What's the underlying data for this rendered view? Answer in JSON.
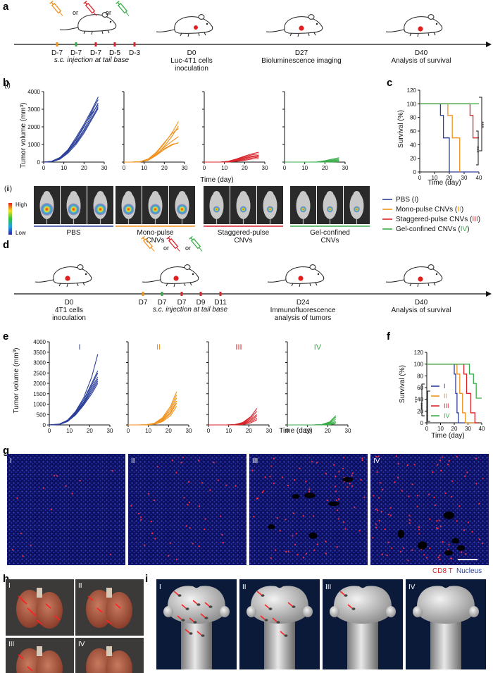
{
  "colors": {
    "blue": "#2b3f9a",
    "orange": "#f0921e",
    "red": "#d8242a",
    "green": "#3aad48"
  },
  "panel_labels": [
    "a",
    "b",
    "c",
    "d",
    "e",
    "f",
    "g",
    "h",
    "i"
  ],
  "panel_a": {
    "or1": "or",
    "or2": "or",
    "days": [
      "D-7",
      "D-7",
      "D-7",
      "D-5",
      "D-3"
    ],
    "injection": "s.c. injection at tail base",
    "events": [
      {
        "day": "D0",
        "label1": "Luc-4T1 cells",
        "label2": "inoculation"
      },
      {
        "day": "D27",
        "label1": "Bioluminescence imaging",
        "label2": ""
      },
      {
        "day": "D40",
        "label1": "Analysis of survival",
        "label2": ""
      }
    ]
  },
  "panel_b": {
    "sub_i": "(i)",
    "sub_ii": "(ii)",
    "ylabel": "Tumor volume (mm³)",
    "xlabel": "Time (day)",
    "yticks": [
      "0",
      "1000",
      "2000",
      "3000",
      "4000"
    ],
    "xticks": [
      "0",
      "10",
      "20",
      "30"
    ],
    "scale_high": "High",
    "scale_low": "Low",
    "groups": [
      {
        "l1": "PBS",
        "l2": ""
      },
      {
        "l1": "Mono-pulse",
        "l2": "CNVs"
      },
      {
        "l1": "Staggered-pulse",
        "l2": "CNVs"
      },
      {
        "l1": "Gel-confined",
        "l2": "CNVs"
      }
    ]
  },
  "panel_c": {
    "ylabel": "Survival (%)",
    "xlabel": "Time (day)",
    "yticks": [
      "0",
      "20",
      "40",
      "60",
      "80",
      "100",
      "120"
    ],
    "xticks": [
      "0",
      "10",
      "20",
      "30",
      "40"
    ],
    "sig1": "***",
    "sig2": "***",
    "legend": [
      {
        "name": "PBS (",
        "roman": "I",
        "close": ")"
      },
      {
        "name": "Mono-pulse CNVs (",
        "roman": "II",
        "close": ")"
      },
      {
        "name": "Staggered-pulse CNVs (",
        "roman": "III",
        "close": ")"
      },
      {
        "name": "Gel-confined CNVs (",
        "roman": "IV",
        "close": ")"
      }
    ]
  },
  "panel_d": {
    "or1": "or",
    "or2": "or",
    "days": [
      "D7",
      "D7",
      "D7",
      "D9",
      "D11"
    ],
    "injection": "s.c. injection at tail base",
    "events": [
      {
        "day": "D0",
        "label1": "4T1 cells",
        "label2": "inoculation"
      },
      {
        "day": "D24",
        "label1": "Immunofluorescence",
        "label2": "analysis of tumors"
      },
      {
        "day": "D40",
        "label1": "Analysis of survival",
        "label2": ""
      }
    ]
  },
  "panel_e": {
    "ylabel": "Tumor volume (mm³)",
    "xlabel": "Time (day)",
    "yticks": [
      "0",
      "500",
      "1000",
      "1500",
      "2000",
      "2500",
      "3000",
      "3500",
      "4000"
    ],
    "xticks": [
      "0",
      "10",
      "20",
      "30"
    ],
    "titles": [
      "I",
      "II",
      "III",
      "IV"
    ]
  },
  "panel_f": {
    "ylabel": "Survival (%)",
    "xlabel": "Time (day)",
    "yticks": [
      "0",
      "20",
      "40",
      "60",
      "80",
      "100",
      "120"
    ],
    "xticks": [
      "0",
      "10",
      "20",
      "30",
      "40"
    ],
    "sig1": "***",
    "sig2": "***",
    "legend": [
      "I",
      "II",
      "III",
      "IV"
    ]
  },
  "panel_g": {
    "tiles": [
      "I",
      "II",
      "III",
      "IV"
    ],
    "legend_cd8": "CD8 T",
    "legend_nucleus": "Nucleus"
  },
  "panel_h": {
    "tiles": [
      "I",
      "II",
      "III",
      "IV"
    ]
  },
  "panel_i": {
    "tiles": [
      "I",
      "II",
      "III",
      "IV"
    ]
  },
  "chart_data": [
    {
      "type": "line",
      "title": "Panel b(i) tumor growth",
      "xlabel": "Time (day)",
      "ylabel": "Tumor volume (mm³)",
      "xlim": [
        0,
        30
      ],
      "ylim": [
        0,
        4000
      ],
      "x": [
        0,
        4,
        8,
        12,
        16,
        20,
        24,
        27
      ],
      "groups": [
        {
          "name": "PBS",
          "series": [
            [
              0,
              40,
              220,
              620,
              1250,
              2000,
              2900,
              3550
            ],
            [
              0,
              30,
              180,
              560,
              1150,
              1850,
              2700,
              3350
            ],
            [
              0,
              50,
              260,
              700,
              1400,
              2150,
              3000,
              3700
            ],
            [
              0,
              35,
              200,
              580,
              1080,
              1750,
              2550,
              3150
            ],
            [
              0,
              45,
              240,
              650,
              1300,
              2050,
              2800,
              3250
            ],
            [
              0,
              25,
              160,
              500,
              1000,
              1650,
              2450,
              3050
            ]
          ]
        },
        {
          "name": "Mono-pulse CNVs",
          "series": [
            [
              0,
              0,
              20,
              150,
              500,
              1050,
              1700,
              2300
            ],
            [
              0,
              0,
              15,
              120,
              420,
              900,
              1500,
              2050
            ],
            [
              0,
              0,
              25,
              180,
              560,
              1100,
              1650,
              1900
            ],
            [
              0,
              0,
              10,
              100,
              380,
              720,
              980,
              1100
            ],
            [
              0,
              0,
              15,
              130,
              400,
              760,
              1020,
              1080
            ],
            [
              0,
              0,
              20,
              140,
              450,
              850,
              1200,
              1450
            ]
          ]
        },
        {
          "name": "Staggered-pulse CNVs",
          "series": [
            [
              0,
              0,
              0,
              50,
              180,
              340,
              480,
              560
            ],
            [
              0,
              0,
              0,
              40,
              150,
              300,
              420,
              460
            ],
            [
              0,
              0,
              0,
              30,
              120,
              250,
              350,
              380
            ],
            [
              0,
              0,
              0,
              20,
              90,
              200,
              300,
              330
            ],
            [
              0,
              0,
              0,
              10,
              60,
              150,
              240,
              280
            ],
            [
              0,
              0,
              0,
              5,
              40,
              100,
              180,
              200
            ]
          ]
        },
        {
          "name": "Gel-confined CNVs",
          "series": [
            [
              0,
              0,
              0,
              0,
              10,
              80,
              180,
              250
            ],
            [
              0,
              0,
              0,
              0,
              5,
              50,
              130,
              180
            ],
            [
              0,
              0,
              0,
              0,
              0,
              30,
              90,
              130
            ],
            [
              0,
              0,
              0,
              0,
              0,
              10,
              40,
              80
            ],
            [
              0,
              0,
              0,
              0,
              0,
              5,
              20,
              40
            ],
            [
              0,
              0,
              0,
              0,
              0,
              0,
              10,
              20
            ]
          ]
        }
      ]
    },
    {
      "type": "line",
      "title": "Panel c survival",
      "xlabel": "Time (day)",
      "ylabel": "Survival (%)",
      "xlim": [
        0,
        40
      ],
      "ylim": [
        0,
        120
      ],
      "series": [
        {
          "name": "PBS (I)",
          "steps": [
            [
              0,
              100
            ],
            [
              14,
              100
            ],
            [
              14,
              83
            ],
            [
              16,
              83
            ],
            [
              16,
              50
            ],
            [
              20,
              50
            ],
            [
              20,
              0
            ],
            [
              40,
              0
            ]
          ]
        },
        {
          "name": "Mono-pulse CNVs (II)",
          "steps": [
            [
              0,
              100
            ],
            [
              19,
              100
            ],
            [
              19,
              83
            ],
            [
              22,
              83
            ],
            [
              22,
              50
            ],
            [
              27,
              50
            ],
            [
              27,
              0
            ]
          ]
        },
        {
          "name": "Staggered-pulse CNVs (III)",
          "steps": [
            [
              0,
              100
            ],
            [
              34,
              100
            ],
            [
              34,
              83
            ],
            [
              36,
              83
            ],
            [
              36,
              50
            ],
            [
              40,
              50
            ]
          ]
        },
        {
          "name": "Gel-confined CNVs (IV)",
          "steps": [
            [
              0,
              100
            ],
            [
              40,
              100
            ]
          ]
        }
      ]
    },
    {
      "type": "line",
      "title": "Panel e tumor growth",
      "xlabel": "Time (day)",
      "ylabel": "Tumor volume (mm³)",
      "xlim": [
        0,
        30
      ],
      "ylim": [
        0,
        4000
      ],
      "x": [
        0,
        5,
        9,
        13,
        17,
        21,
        24
      ],
      "groups": [
        {
          "name": "I",
          "series": [
            [
              0,
              40,
              220,
              650,
              1300,
              2300,
              3400
            ],
            [
              0,
              30,
              200,
              600,
              1200,
              2000,
              2600
            ],
            [
              0,
              35,
              210,
              560,
              1100,
              1800,
              2300
            ],
            [
              0,
              25,
              180,
              520,
              1000,
              1600,
              2100
            ],
            [
              0,
              30,
              190,
              540,
              1050,
              1700,
              2200
            ],
            [
              0,
              45,
              230,
              620,
              1200,
              1900,
              2500
            ],
            [
              0,
              20,
              160,
              480,
              950,
              1500,
              2000
            ]
          ]
        },
        {
          "name": "II",
          "series": [
            [
              0,
              0,
              10,
              80,
              350,
              900,
              1600
            ],
            [
              0,
              0,
              10,
              70,
              300,
              800,
              1450
            ],
            [
              0,
              0,
              8,
              60,
              260,
              700,
              1300
            ],
            [
              0,
              0,
              5,
              50,
              220,
              600,
              1150
            ],
            [
              0,
              0,
              5,
              40,
              200,
              550,
              1050
            ],
            [
              0,
              0,
              3,
              30,
              160,
              450,
              900
            ]
          ]
        },
        {
          "name": "III",
          "series": [
            [
              0,
              0,
              0,
              20,
              120,
              400,
              800
            ],
            [
              0,
              0,
              0,
              15,
              100,
              350,
              650
            ],
            [
              0,
              0,
              0,
              10,
              80,
              280,
              500
            ],
            [
              0,
              0,
              0,
              8,
              60,
              220,
              420
            ],
            [
              0,
              0,
              0,
              5,
              40,
              160,
              330
            ],
            [
              0,
              0,
              0,
              0,
              20,
              100,
              250
            ]
          ]
        },
        {
          "name": "IV",
          "series": [
            [
              0,
              0,
              0,
              0,
              20,
              150,
              450
            ],
            [
              0,
              0,
              0,
              0,
              15,
              120,
              380
            ],
            [
              0,
              0,
              0,
              0,
              10,
              80,
              280
            ],
            [
              0,
              0,
              0,
              0,
              5,
              50,
              180
            ],
            [
              0,
              0,
              0,
              0,
              0,
              30,
              120
            ],
            [
              0,
              0,
              0,
              0,
              0,
              10,
              60
            ]
          ]
        }
      ]
    },
    {
      "type": "line",
      "title": "Panel f survival",
      "xlabel": "Time (day)",
      "ylabel": "Survival (%)",
      "xlim": [
        0,
        40
      ],
      "ylim": [
        0,
        120
      ],
      "series": [
        {
          "name": "I",
          "steps": [
            [
              0,
              100
            ],
            [
              20,
              100
            ],
            [
              20,
              83
            ],
            [
              21,
              83
            ],
            [
              21,
              50
            ],
            [
              22,
              50
            ],
            [
              22,
              17
            ],
            [
              23,
              17
            ],
            [
              23,
              0
            ],
            [
              38,
              0
            ]
          ]
        },
        {
          "name": "II",
          "steps": [
            [
              0,
              100
            ],
            [
              22,
              100
            ],
            [
              22,
              83
            ],
            [
              24,
              83
            ],
            [
              24,
              50
            ],
            [
              26,
              50
            ],
            [
              26,
              17
            ],
            [
              28,
              17
            ],
            [
              28,
              0
            ],
            [
              38,
              0
            ]
          ]
        },
        {
          "name": "III",
          "steps": [
            [
              0,
              100
            ],
            [
              27,
              100
            ],
            [
              27,
              83
            ],
            [
              29,
              83
            ],
            [
              29,
              50
            ],
            [
              32,
              50
            ],
            [
              32,
              17
            ],
            [
              35,
              17
            ],
            [
              35,
              0
            ],
            [
              38,
              0
            ]
          ]
        },
        {
          "name": "IV",
          "steps": [
            [
              0,
              100
            ],
            [
              31,
              100
            ],
            [
              31,
              83
            ],
            [
              34,
              83
            ],
            [
              34,
              67
            ],
            [
              36,
              67
            ],
            [
              36,
              42
            ],
            [
              40,
              42
            ]
          ]
        }
      ]
    }
  ]
}
